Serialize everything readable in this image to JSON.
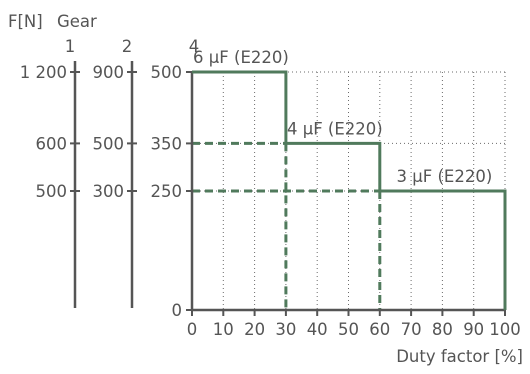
{
  "chart_data": {
    "type": "line",
    "header": {
      "f_label": "F[N]",
      "gear_label": "Gear"
    },
    "gear_axes": [
      {
        "name": "1",
        "tick_labels": [
          "1 200",
          "600",
          "500"
        ]
      },
      {
        "name": "2",
        "tick_labels": [
          "900",
          "500",
          "300"
        ]
      },
      {
        "name": "4",
        "tick_labels": [
          "500",
          "350",
          "250",
          "0"
        ]
      }
    ],
    "xlabel": "Duty factor [%]",
    "xlim": [
      0,
      100
    ],
    "ylim": [
      0,
      500
    ],
    "xticks": [
      0,
      10,
      20,
      30,
      40,
      50,
      60,
      70,
      80,
      90,
      100
    ],
    "yticks": [
      0,
      250,
      350,
      500
    ],
    "grid": true,
    "series": [
      {
        "x": [
          0,
          30,
          30,
          60,
          60,
          100,
          100
        ],
        "y": [
          500,
          500,
          350,
          350,
          250,
          250,
          0
        ]
      }
    ],
    "segments": [
      {
        "label": "6 µF (E220)",
        "x_start": 0,
        "x_end": 30,
        "y": 500
      },
      {
        "label": "4 µF (E220)",
        "x_start": 30,
        "x_end": 60,
        "y": 350
      },
      {
        "label": "3 µF (E220)",
        "x_start": 60,
        "x_end": 100,
        "y": 250
      }
    ],
    "colors": {
      "series": "#507a5c",
      "text": "#555555"
    }
  }
}
